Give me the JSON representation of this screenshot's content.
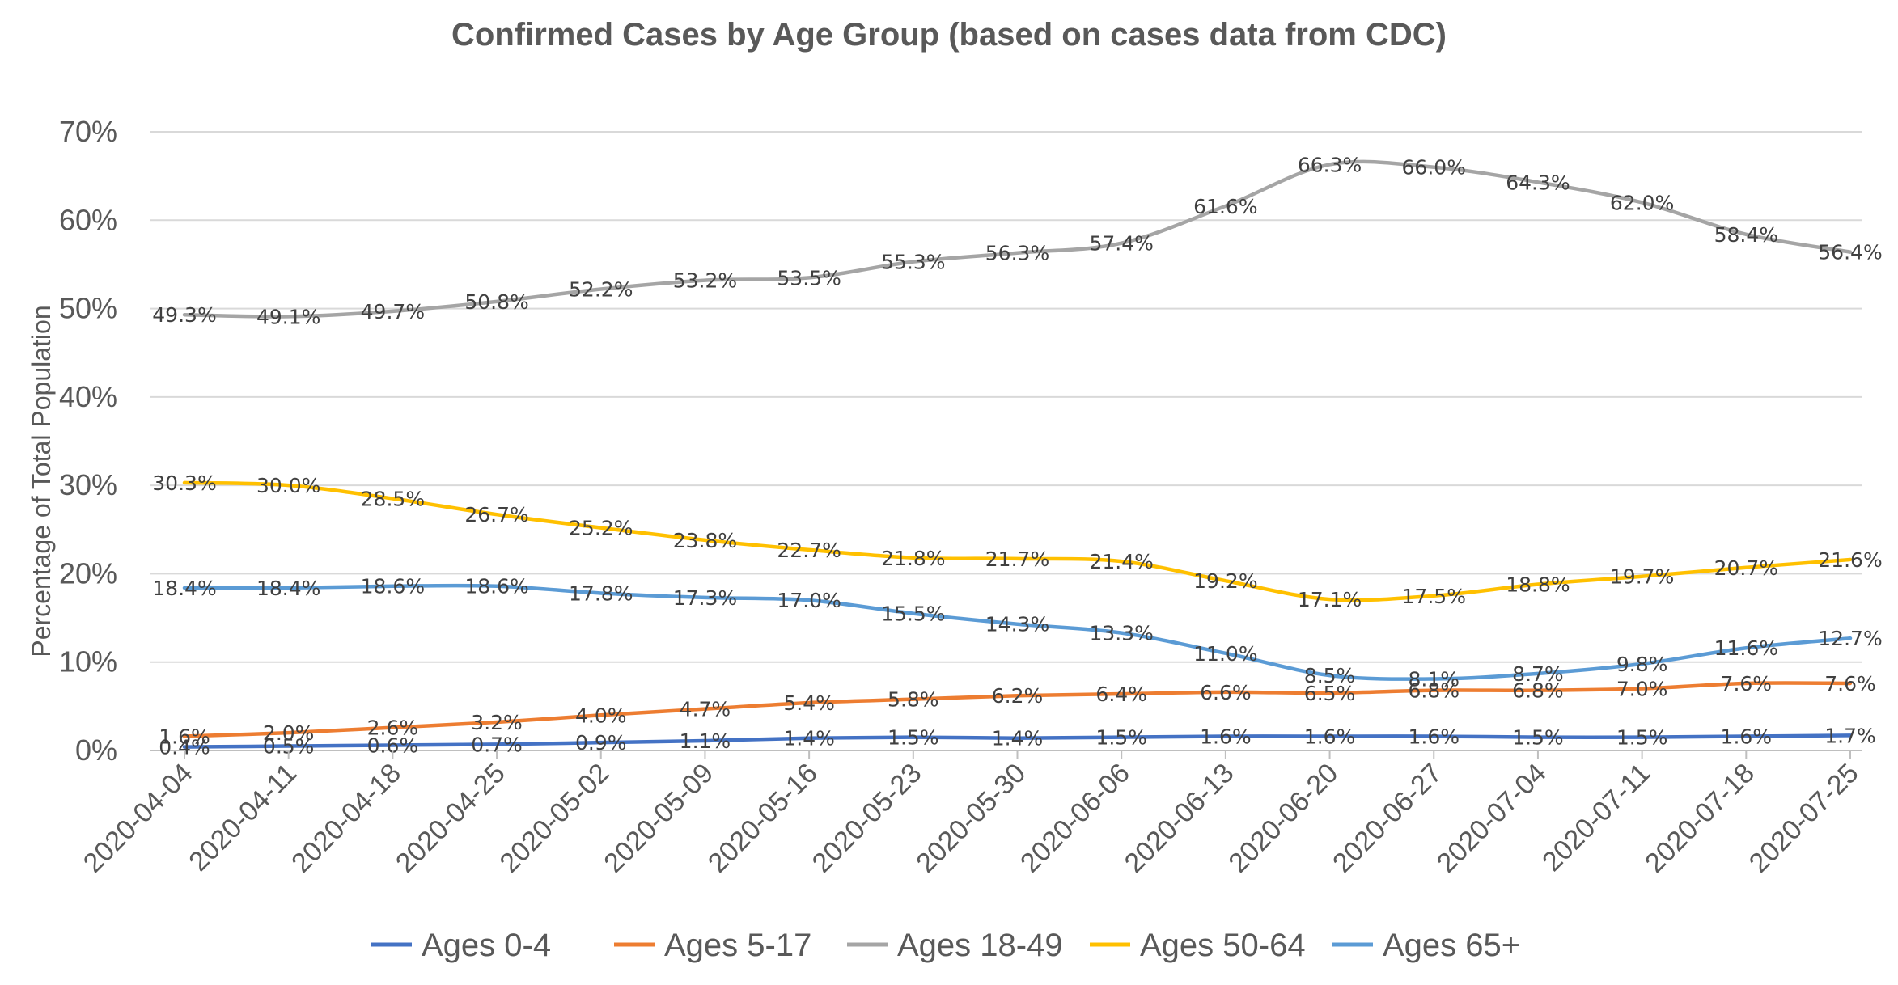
{
  "chart_data": {
    "type": "line",
    "title": "Confirmed Cases by Age Group (based on cases data from CDC)",
    "xlabel": "",
    "ylabel": "Percentage of Total Population",
    "ylim": [
      0,
      70
    ],
    "yticks": [
      "0%",
      "10%",
      "20%",
      "30%",
      "40%",
      "50%",
      "60%",
      "70%"
    ],
    "grid": true,
    "legend_position": "bottom",
    "categories": [
      "2020-04-04",
      "2020-04-11",
      "2020-04-18",
      "2020-04-25",
      "2020-05-02",
      "2020-05-09",
      "2020-05-16",
      "2020-05-23",
      "2020-05-30",
      "2020-06-06",
      "2020-06-13",
      "2020-06-20",
      "2020-06-27",
      "2020-07-04",
      "2020-07-11",
      "2020-07-18",
      "2020-07-25"
    ],
    "series": [
      {
        "name": "Ages 0-4",
        "color": "#4472c4",
        "values": [
          0.4,
          0.5,
          0.6,
          0.7,
          0.9,
          1.1,
          1.4,
          1.5,
          1.4,
          1.5,
          1.6,
          1.6,
          1.6,
          1.5,
          1.5,
          1.6,
          1.7
        ],
        "labels": [
          "0.4%",
          "0.5%",
          "0.6%",
          "0.7%",
          "0.9%",
          "1.1%",
          "1.4%",
          "1.5%",
          "1.4%",
          "1.5%",
          "1.6%",
          "1.6%",
          "1.6%",
          "1.5%",
          "1.5%",
          "1.6%",
          "1.7%"
        ]
      },
      {
        "name": "Ages 5-17",
        "color": "#ed7d31",
        "values": [
          1.6,
          2.0,
          2.6,
          3.2,
          4.0,
          4.7,
          5.4,
          5.8,
          6.2,
          6.4,
          6.6,
          6.5,
          6.8,
          6.8,
          7.0,
          7.6,
          7.6
        ],
        "labels": [
          "1.6%",
          "2.0%",
          "2.6%",
          "3.2%",
          "4.0%",
          "4.7%",
          "5.4%",
          "5.8%",
          "6.2%",
          "6.4%",
          "6.6%",
          "6.5%",
          "6.8%",
          "6.8%",
          "7.0%",
          "7.6%",
          "7.6%"
        ]
      },
      {
        "name": "Ages 18-49",
        "color": "#a5a5a5",
        "values": [
          49.3,
          49.1,
          49.7,
          50.8,
          52.2,
          53.2,
          53.5,
          55.3,
          56.3,
          57.4,
          61.6,
          66.3,
          66.0,
          64.3,
          62.0,
          58.4,
          56.4
        ],
        "labels": [
          "49.3%",
          "49.1%",
          "49.7%",
          "50.8%",
          "52.2%",
          "53.2%",
          "53.5%",
          "55.3%",
          "56.3%",
          "57.4%",
          "61.6%",
          "66.3%",
          "66.0%",
          "64.3%",
          "62.0%",
          "58.4%",
          "56.4%"
        ]
      },
      {
        "name": "Ages 50-64",
        "color": "#ffc000",
        "values": [
          30.3,
          30.0,
          28.5,
          26.7,
          25.2,
          23.8,
          22.7,
          21.8,
          21.7,
          21.4,
          19.2,
          17.1,
          17.5,
          18.8,
          19.7,
          20.7,
          21.6
        ],
        "labels": [
          "30.3%",
          "30.0%",
          "28.5%",
          "26.7%",
          "25.2%",
          "23.8%",
          "22.7%",
          "21.8%",
          "21.7%",
          "21.4%",
          "19.2%",
          "17.1%",
          "17.5%",
          "18.8%",
          "19.7%",
          "20.7%",
          "21.6%"
        ]
      },
      {
        "name": "Ages 65+",
        "color": "#5b9bd5",
        "values": [
          18.4,
          18.4,
          18.6,
          18.6,
          17.8,
          17.3,
          17.0,
          15.5,
          14.3,
          13.3,
          11.0,
          8.5,
          8.1,
          8.7,
          9.8,
          11.6,
          12.7
        ],
        "labels": [
          "18.4%",
          "18.4%",
          "18.6%",
          "18.6%",
          "17.8%",
          "17.3%",
          "17.0%",
          "15.5%",
          "14.3%",
          "13.3%",
          "11.0%",
          "8.5%",
          "8.1%",
          "8.7%",
          "9.8%",
          "11.6%",
          "12.7%"
        ]
      }
    ]
  }
}
